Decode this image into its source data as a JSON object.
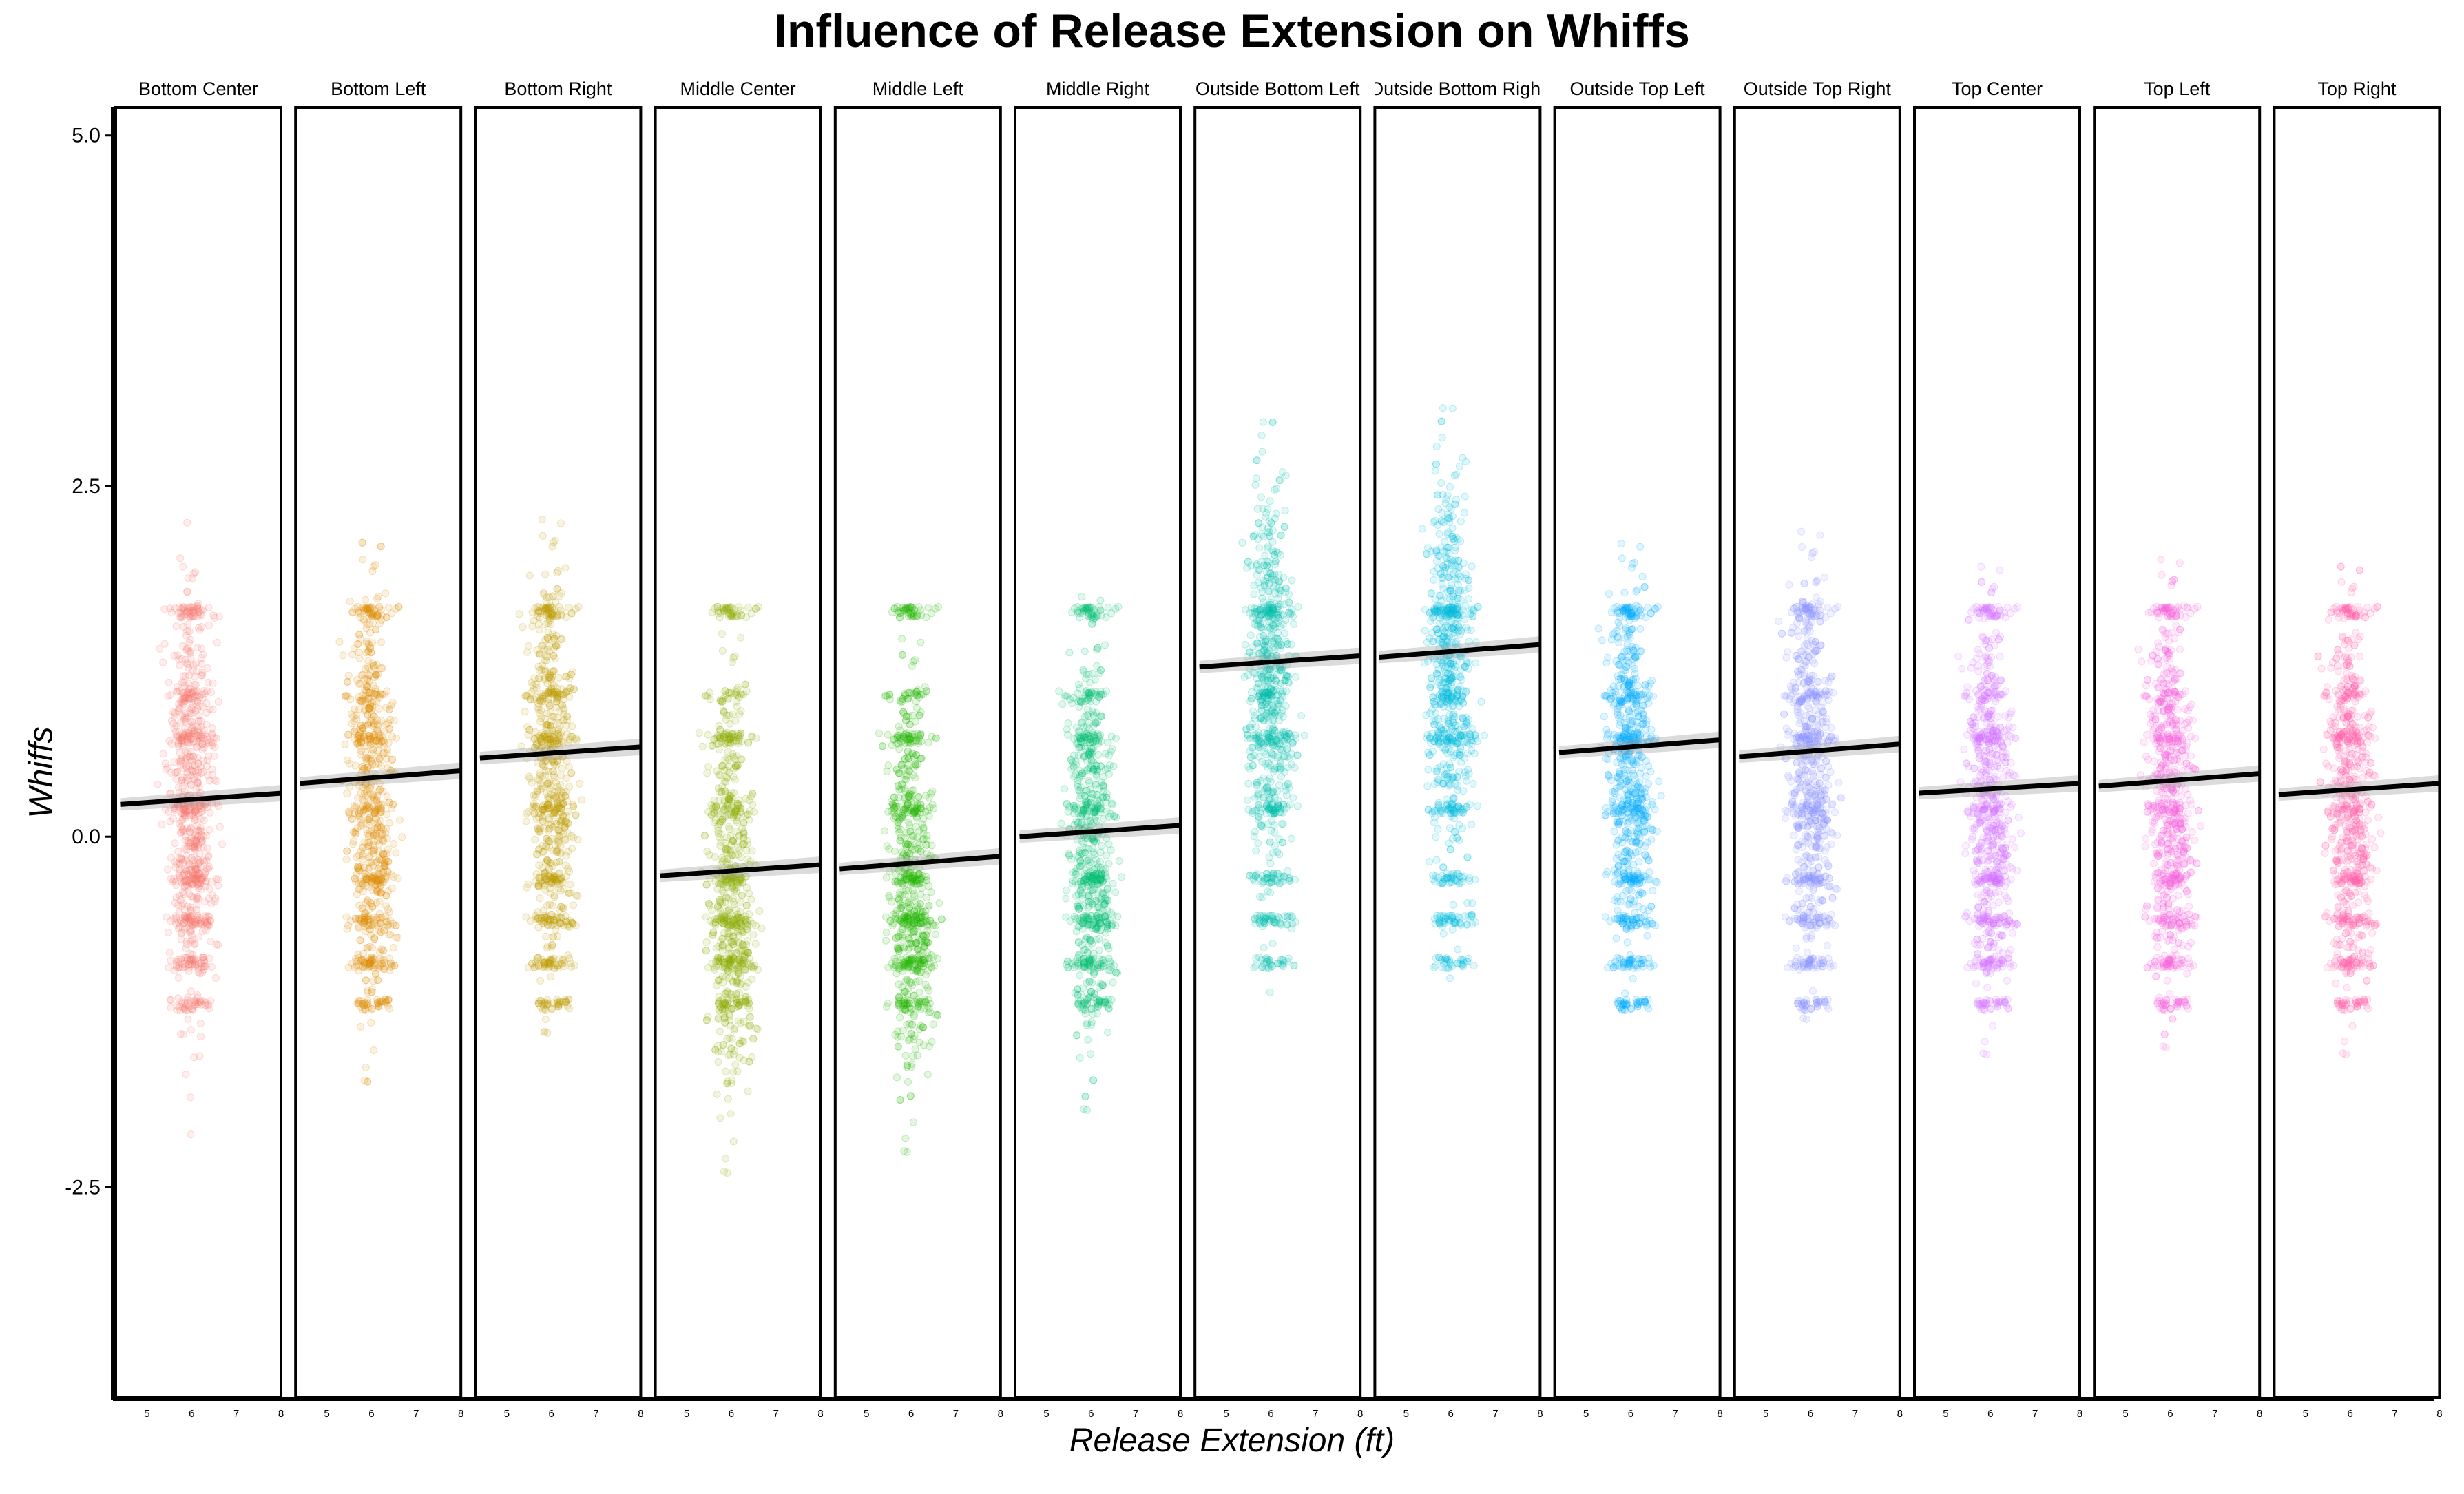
{
  "chart_data": {
    "type": "scatter",
    "title": "Influence of Release Extension on Whiffs",
    "xlabel": "Release Extension (ft)",
    "ylabel": "Whiffs",
    "xlim": [
      4.3,
      8.0
    ],
    "ylim": [
      -4.0,
      5.2
    ],
    "x_ticks": [
      5,
      6,
      7,
      8
    ],
    "y_ticks": [
      -2.5,
      0.0,
      2.5,
      5.0
    ],
    "y_tick_labels": [
      "-2.5",
      "0.0",
      "2.5",
      "5.0"
    ],
    "grid": false,
    "facets": [
      {
        "name": "Bottom Center",
        "color": "#F8766D",
        "fit": {
          "x": [
            4.4,
            8.0
          ],
          "y": [
            0.23,
            0.31
          ]
        },
        "y_center": 0.25,
        "y_spread": 1.05
      },
      {
        "name": "Bottom Left",
        "color": "#E18A00",
        "fit": {
          "x": [
            4.4,
            8.0
          ],
          "y": [
            0.38,
            0.47
          ]
        },
        "y_center": 0.3,
        "y_spread": 1.05
      },
      {
        "name": "Bottom Right",
        "color": "#BE9C00",
        "fit": {
          "x": [
            4.4,
            8.0
          ],
          "y": [
            0.56,
            0.64
          ]
        },
        "y_center": 0.55,
        "y_spread": 1.0
      },
      {
        "name": "Middle Center",
        "color": "#8CAB00",
        "fit": {
          "x": [
            4.4,
            8.0
          ],
          "y": [
            -0.28,
            -0.2
          ]
        },
        "y_center": -0.35,
        "y_spread": 1.05
      },
      {
        "name": "Middle Left",
        "color": "#24B700",
        "fit": {
          "x": [
            4.4,
            8.0
          ],
          "y": [
            -0.23,
            -0.14
          ]
        },
        "y_center": -0.3,
        "y_spread": 1.0
      },
      {
        "name": "Middle Right",
        "color": "#00BE70",
        "fit": {
          "x": [
            4.4,
            8.0
          ],
          "y": [
            0.0,
            0.08
          ]
        },
        "y_center": 0.0,
        "y_spread": 1.0
      },
      {
        "name": "Outside Bottom Left",
        "color": "#00C1AB",
        "fit": {
          "x": [
            4.4,
            8.0
          ],
          "y": [
            1.21,
            1.29
          ]
        },
        "y_center": 1.15,
        "y_spread": 1.0
      },
      {
        "name": "Outside Bottom Right",
        "color": "#00BBDA",
        "fit": {
          "x": [
            4.4,
            8.0
          ],
          "y": [
            1.28,
            1.37
          ]
        },
        "y_center": 1.25,
        "y_spread": 1.0
      },
      {
        "name": "Outside Top Left",
        "color": "#00ACFC",
        "fit": {
          "x": [
            4.4,
            8.0
          ],
          "y": [
            0.6,
            0.69
          ]
        },
        "y_center": 0.55,
        "y_spread": 0.9
      },
      {
        "name": "Outside Top Right",
        "color": "#8B93FF",
        "fit": {
          "x": [
            4.4,
            8.0
          ],
          "y": [
            0.57,
            0.66
          ]
        },
        "y_center": 0.55,
        "y_spread": 0.95
      },
      {
        "name": "Top Center",
        "color": "#D575FE",
        "fit": {
          "x": [
            4.4,
            8.0
          ],
          "y": [
            0.31,
            0.38
          ]
        },
        "y_center": 0.3,
        "y_spread": 0.95
      },
      {
        "name": "Top Left",
        "color": "#F962DD",
        "fit": {
          "x": [
            4.4,
            8.0
          ],
          "y": [
            0.36,
            0.45
          ]
        },
        "y_center": 0.35,
        "y_spread": 0.95
      },
      {
        "name": "Top Right",
        "color": "#FF65AC",
        "fit": {
          "x": [
            4.4,
            8.0
          ],
          "y": [
            0.3,
            0.38
          ]
        },
        "y_center": 0.3,
        "y_spread": 0.95
      }
    ]
  }
}
